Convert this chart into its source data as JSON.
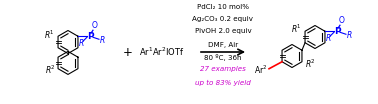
{
  "bg_color": "#ffffff",
  "fig_width": 3.78,
  "fig_height": 1.04,
  "dpi": 100,
  "conditions_lines": [
    "PdCl₂ 10 mol%",
    "Ag₂CO₃ 0.2 equiv",
    "PivOH 2.0 equiv",
    "DMF, Air",
    "80 ºC, 36h"
  ],
  "conditions_italic_lines": [
    "27 examples",
    "up to 83% yield"
  ],
  "conditions_italic_color": "#cc00cc",
  "text_fontsize": 5.5,
  "small_fontsize": 4.8
}
